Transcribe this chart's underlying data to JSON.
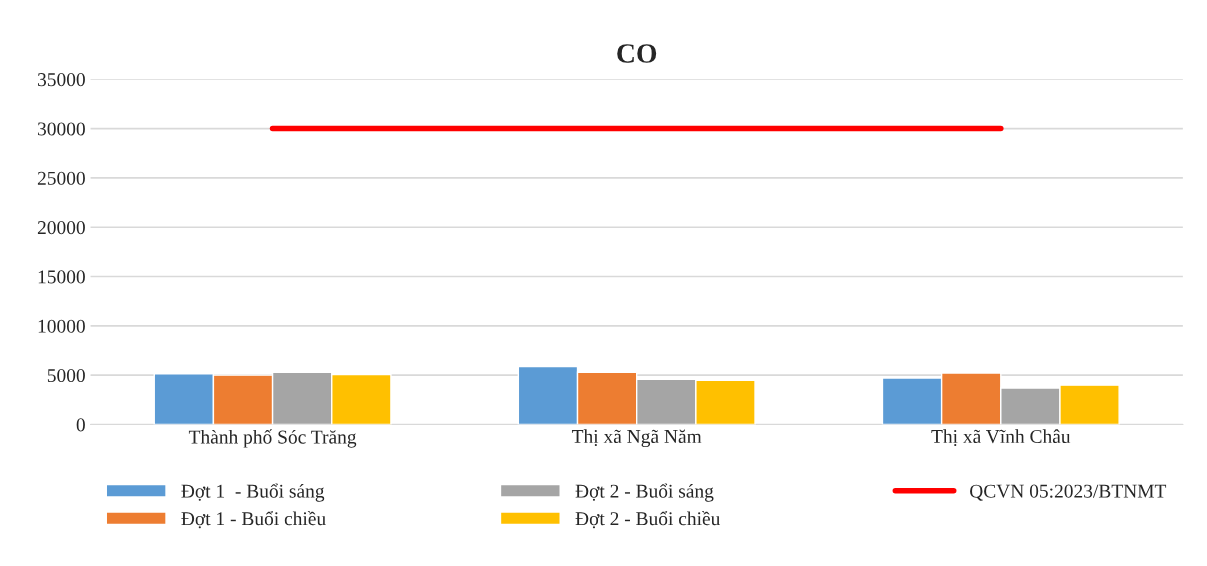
{
  "chart_data": {
    "type": "bar",
    "title": "CO",
    "categories": [
      "Thành phố Sóc Trăng",
      "Thị xã Ngã Năm",
      "Thị xã Vĩnh Châu"
    ],
    "series": [
      {
        "name": "Đợt 1  - Buổi sáng",
        "color": "#5b9bd5",
        "values": [
          5150,
          5870,
          4710
        ]
      },
      {
        "name": "Đợt 1 - Buổi chiều",
        "color": "#ed7d31",
        "values": [
          5000,
          5290,
          5220
        ]
      },
      {
        "name": "Đợt 2 - Buổi sáng",
        "color": "#a5a5a5",
        "values": [
          5290,
          4570,
          3700
        ]
      },
      {
        "name": "Đợt 2 - Buổi chiều",
        "color": "#ffc000",
        "values": [
          5070,
          4490,
          3990
        ]
      },
      {
        "name": "QCVN 05:2023/BTNMT",
        "color": "#ff0000",
        "type": "line",
        "values": [
          30000,
          30000,
          30000
        ]
      }
    ],
    "ylim": [
      0,
      35000
    ],
    "yticks": [
      0,
      5000,
      10000,
      15000,
      20000,
      25000,
      30000,
      35000
    ],
    "grid": "y",
    "legend": "bottom"
  }
}
